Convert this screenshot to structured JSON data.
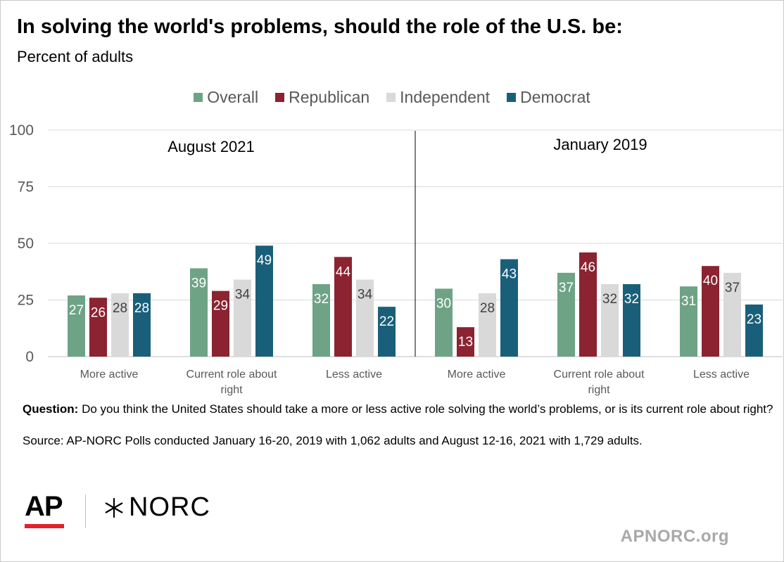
{
  "title": "In solving the world's problems, should the role of the U.S. be:",
  "subtitle": "Percent of adults",
  "legend": [
    {
      "name": "Overall",
      "color": "#6fa386"
    },
    {
      "name": "Republican",
      "color": "#8b2331"
    },
    {
      "name": "Independent",
      "color": "#d9d9d9"
    },
    {
      "name": "Democrat",
      "color": "#1a5f7a"
    }
  ],
  "chart_data": {
    "type": "bar",
    "ylim": [
      0,
      100
    ],
    "yticks": [
      0,
      25,
      50,
      75,
      100
    ],
    "grid": true,
    "legend_position": "top",
    "panels": [
      {
        "label": "August 2021",
        "categories": [
          "More active",
          "Current role about right",
          "Less active"
        ],
        "series": [
          {
            "name": "Overall",
            "values": [
              27,
              39,
              32
            ]
          },
          {
            "name": "Republican",
            "values": [
              26,
              29,
              44
            ]
          },
          {
            "name": "Independent",
            "values": [
              28,
              34,
              34
            ]
          },
          {
            "name": "Democrat",
            "values": [
              28,
              49,
              22
            ]
          }
        ]
      },
      {
        "label": "January 2019",
        "categories": [
          "More active",
          "Current role about right",
          "Less active"
        ],
        "series": [
          {
            "name": "Overall",
            "values": [
              30,
              37,
              31
            ]
          },
          {
            "name": "Republican",
            "values": [
              13,
              46,
              40
            ]
          },
          {
            "name": "Independent",
            "values": [
              28,
              32,
              37
            ]
          },
          {
            "name": "Democrat",
            "values": [
              43,
              32,
              23
            ]
          }
        ]
      }
    ]
  },
  "footer": {
    "question_label": "Question:",
    "question_text": " Do you think the United States should take a more or less active role solving the world’s problems, or is its current role about right?",
    "source": "Source: AP-NORC Polls conducted January 16-20, 2019 with 1,062 adults and August 12-16, 2021 with 1,729 adults."
  },
  "logos": {
    "ap": "AP",
    "norc": "NORC",
    "norc_mark": "star-burst-icon"
  },
  "site": "APNORC.org"
}
